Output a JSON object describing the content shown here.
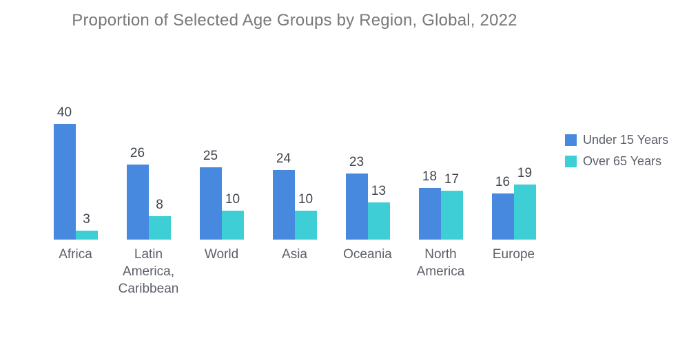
{
  "page": {
    "background": "#ffffff"
  },
  "chart_data": {
    "type": "bar",
    "title": "Proportion of Selected Age Groups by Region, Global, 2022",
    "categories": [
      "Africa",
      "Latin America, Caribbean",
      "World",
      "Asia",
      "Oceania",
      "North America",
      "Europe"
    ],
    "series": [
      {
        "name": "Under 15 Years",
        "color": "#4689de",
        "values": [
          40,
          26,
          25,
          24,
          23,
          18,
          16
        ]
      },
      {
        "name": "Over 65 Years",
        "color": "#3dcfd5",
        "values": [
          3,
          8,
          10,
          10,
          13,
          17,
          19
        ]
      }
    ],
    "ylim": [
      0,
      45
    ],
    "grid": false,
    "axes_visible": false,
    "data_labels": "value above each bar",
    "legend_position": "right"
  },
  "legend": {
    "items": [
      {
        "label": "Under 15 Years",
        "color": "#4689de"
      },
      {
        "label": "Over 65 Years",
        "color": "#3dcfd5"
      }
    ]
  },
  "text_colors": {
    "title": "#76787a",
    "value_label": "#40454e",
    "category_label": "#5a5f68",
    "legend_label": "#5a5f68"
  }
}
